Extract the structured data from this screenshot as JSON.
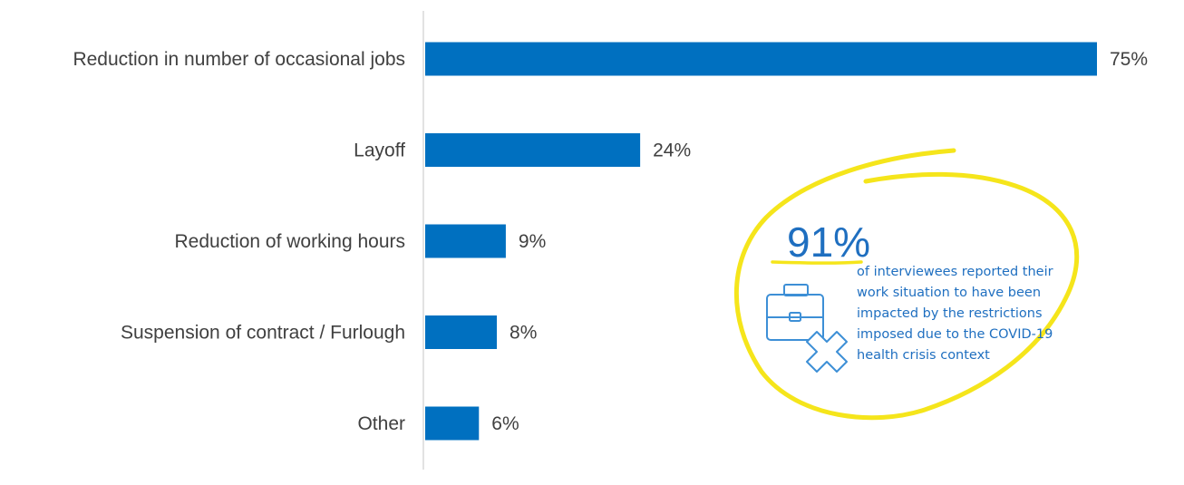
{
  "chart_data": {
    "type": "bar",
    "orientation": "horizontal",
    "categories": [
      "Reduction in number of occasional jobs",
      "Layoff",
      "Reduction of working hours",
      "Suspension of contract / Furlough",
      "Other"
    ],
    "values": [
      75,
      24,
      9,
      8,
      6
    ],
    "value_labels": [
      "75%",
      "24%",
      "9%",
      "8%",
      "6%"
    ],
    "xlim": [
      0,
      75
    ],
    "grid": false,
    "bar_color": "#0070c0"
  },
  "callout": {
    "big_number": "91%",
    "text_lines": [
      "of interviewees reported their",
      "work situation to have been",
      "impacted by the restrictions",
      "imposed due to the COVID-19",
      "health crisis context"
    ],
    "icon": "briefcase-x-icon",
    "text_color": "#1f6fc0",
    "highlight_color": "#f5e51b"
  }
}
